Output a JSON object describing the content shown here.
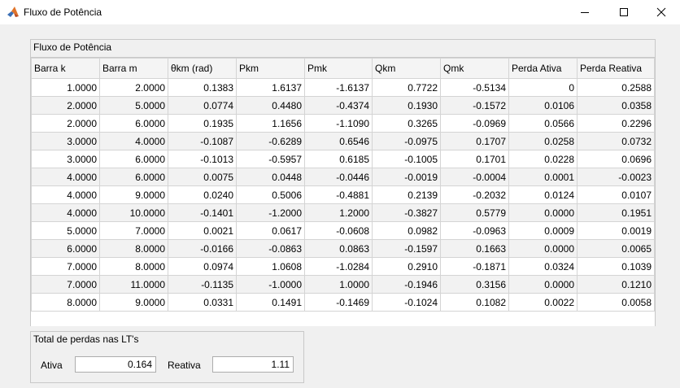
{
  "window": {
    "title": "Fluxo de Potência"
  },
  "flow_panel": {
    "title": "Fluxo de Potência",
    "columns": [
      "Barra k",
      "Barra m",
      "θkm (rad)",
      "Pkm",
      "Pmk",
      "Qkm",
      "Qmk",
      "Perda Ativa",
      "Perda Reativa"
    ],
    "rows": [
      [
        "1.0000",
        "2.0000",
        "0.1383",
        "1.6137",
        "-1.6137",
        "0.7722",
        "-0.5134",
        "0",
        "0.2588"
      ],
      [
        "2.0000",
        "5.0000",
        "0.0774",
        "0.4480",
        "-0.4374",
        "0.1930",
        "-0.1572",
        "0.0106",
        "0.0358"
      ],
      [
        "2.0000",
        "6.0000",
        "0.1935",
        "1.1656",
        "-1.1090",
        "0.3265",
        "-0.0969",
        "0.0566",
        "0.2296"
      ],
      [
        "3.0000",
        "4.0000",
        "-0.1087",
        "-0.6289",
        "0.6546",
        "-0.0975",
        "0.1707",
        "0.0258",
        "0.0732"
      ],
      [
        "3.0000",
        "6.0000",
        "-0.1013",
        "-0.5957",
        "0.6185",
        "-0.1005",
        "0.1701",
        "0.0228",
        "0.0696"
      ],
      [
        "4.0000",
        "6.0000",
        "0.0075",
        "0.0448",
        "-0.0446",
        "-0.0019",
        "-0.0004",
        "0.0001",
        "-0.0023"
      ],
      [
        "4.0000",
        "9.0000",
        "0.0240",
        "0.5006",
        "-0.4881",
        "0.2139",
        "-0.2032",
        "0.0124",
        "0.0107"
      ],
      [
        "4.0000",
        "10.0000",
        "-0.1401",
        "-1.2000",
        "1.2000",
        "-0.3827",
        "0.5779",
        "0.0000",
        "0.1951"
      ],
      [
        "5.0000",
        "7.0000",
        "0.0021",
        "0.0617",
        "-0.0608",
        "0.0982",
        "-0.0963",
        "0.0009",
        "0.0019"
      ],
      [
        "6.0000",
        "8.0000",
        "-0.0166",
        "-0.0863",
        "0.0863",
        "-0.1597",
        "0.1663",
        "0.0000",
        "0.0065"
      ],
      [
        "7.0000",
        "8.0000",
        "0.0974",
        "1.0608",
        "-1.0284",
        "0.2910",
        "-0.1871",
        "0.0324",
        "0.1039"
      ],
      [
        "7.0000",
        "11.0000",
        "-0.1135",
        "-1.0000",
        "1.0000",
        "-0.1946",
        "0.3156",
        "0.0000",
        "0.1210"
      ],
      [
        "8.0000",
        "9.0000",
        "0.0331",
        "0.1491",
        "-0.1469",
        "-0.1024",
        "0.1082",
        "0.0022",
        "0.0058"
      ]
    ]
  },
  "loss_panel": {
    "title": "Total de perdas nas LT's",
    "ativa_label": "Ativa",
    "ativa_value": "0.164",
    "reativa_label": "Reativa",
    "reativa_value": "1.11"
  },
  "icons": {
    "app": "matlab-logo-icon",
    "minimize": "minimize-icon",
    "maximize": "maximize-icon",
    "close": "close-icon"
  }
}
